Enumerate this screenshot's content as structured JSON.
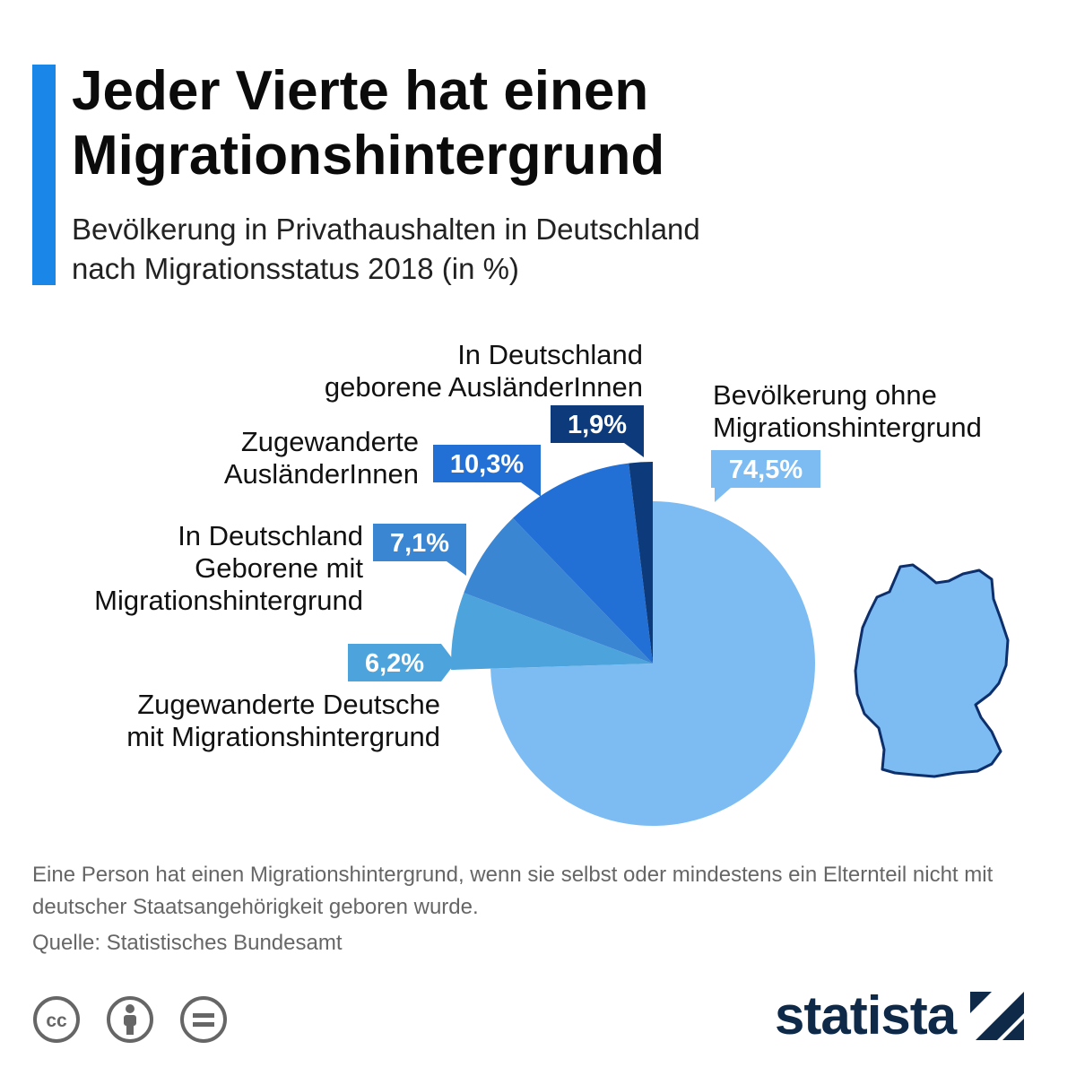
{
  "title": "Jeder Vierte hat einen Migrationshintergrund",
  "subtitle_line1": "Bevölkerung in Privathaushalten in Deutschland",
  "subtitle_line2": "nach Migrationsstatus 2018 (in %)",
  "chart_data": {
    "type": "pie",
    "title": "Jeder Vierte hat einen Migrationshintergrund",
    "subtitle": "Bevölkerung in Privathaushalten in Deutschland nach Migrationsstatus 2018 (in %)",
    "slices": [
      {
        "key": "ohne",
        "label_lines": [
          "Bevölkerung ohne",
          "Migrationshintergrund"
        ],
        "value": 74.5,
        "display": "74,5%",
        "color": "#7dbcf2",
        "exploded": false
      },
      {
        "key": "zugewanderte_deutsche",
        "label_lines": [
          "Zugewanderte Deutsche",
          "mit Migrationshintergrund"
        ],
        "value": 6.2,
        "display": "6,2%",
        "color": "#4da3dc",
        "exploded": true
      },
      {
        "key": "in_de_geborene",
        "label_lines": [
          "In Deutschland",
          "Geborene mit",
          "Migrationshintergrund"
        ],
        "value": 7.1,
        "display": "7,1%",
        "color": "#3a86d3",
        "exploded": true
      },
      {
        "key": "zugewanderte_auslaender",
        "label_lines": [
          "Zugewanderte",
          "AusländerInnen"
        ],
        "value": 10.3,
        "display": "10,3%",
        "color": "#2270d6",
        "exploded": true
      },
      {
        "key": "in_de_geborene_auslaender",
        "label_lines": [
          "In Deutschland",
          "geborene AusländerInnen"
        ],
        "value": 1.9,
        "display": "1,9%",
        "color": "#0c3a7a",
        "exploded": true
      }
    ]
  },
  "map_color": "#7dbcf2",
  "map_outline_color": "#0d2f6b",
  "footnote": "Eine Person hat einen Migrationshintergrund, wenn sie selbst oder mindestens ein Elternteil nicht mit deutscher Staatsangehörigkeit geboren wurde.",
  "source": "Quelle: Statistisches Bundesamt",
  "license_icons": [
    "creative-commons-icon",
    "attribution-icon",
    "no-derivatives-icon"
  ],
  "brand": "statista",
  "accent_color": "#1a86e8"
}
